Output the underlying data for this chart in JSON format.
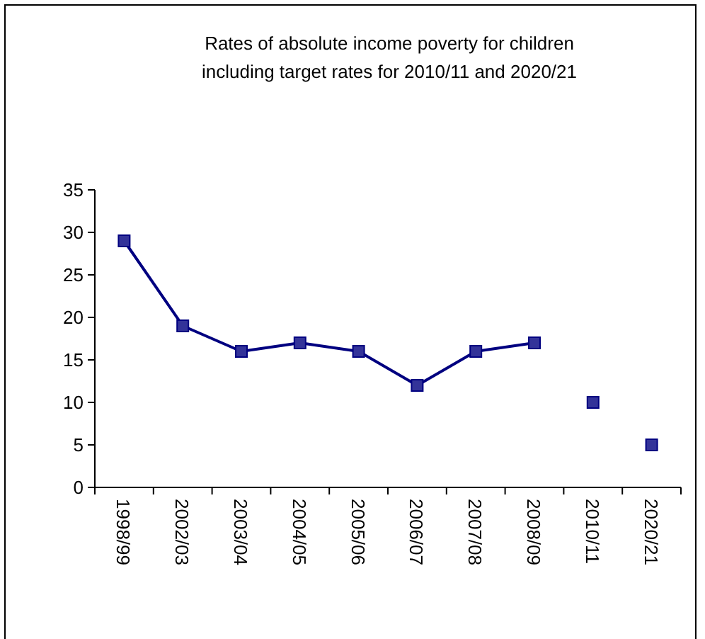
{
  "chart_data": {
    "type": "line",
    "title": "Rates of absolute income poverty for children\nincluding target rates for 2010/11 and 2020/21",
    "categories": [
      "1998/99",
      "2002/03",
      "2003/04",
      "2004/05",
      "2005/06",
      "2006/07",
      "2007/08",
      "2008/09",
      "2010/11",
      "2020/21"
    ],
    "series": [
      {
        "color": "#000080",
        "values": [
          29,
          19,
          16,
          17,
          16,
          12,
          16,
          17,
          null,
          null
        ]
      },
      {
        "type": "scatter",
        "color": "#333399",
        "values": [
          null,
          null,
          null,
          null,
          null,
          null,
          null,
          null,
          10,
          5
        ]
      }
    ],
    "ylim": [
      0,
      35
    ],
    "yticks": [
      0,
      5,
      10,
      15,
      20,
      25,
      30,
      35
    ],
    "marker": "square",
    "grid": false
  }
}
